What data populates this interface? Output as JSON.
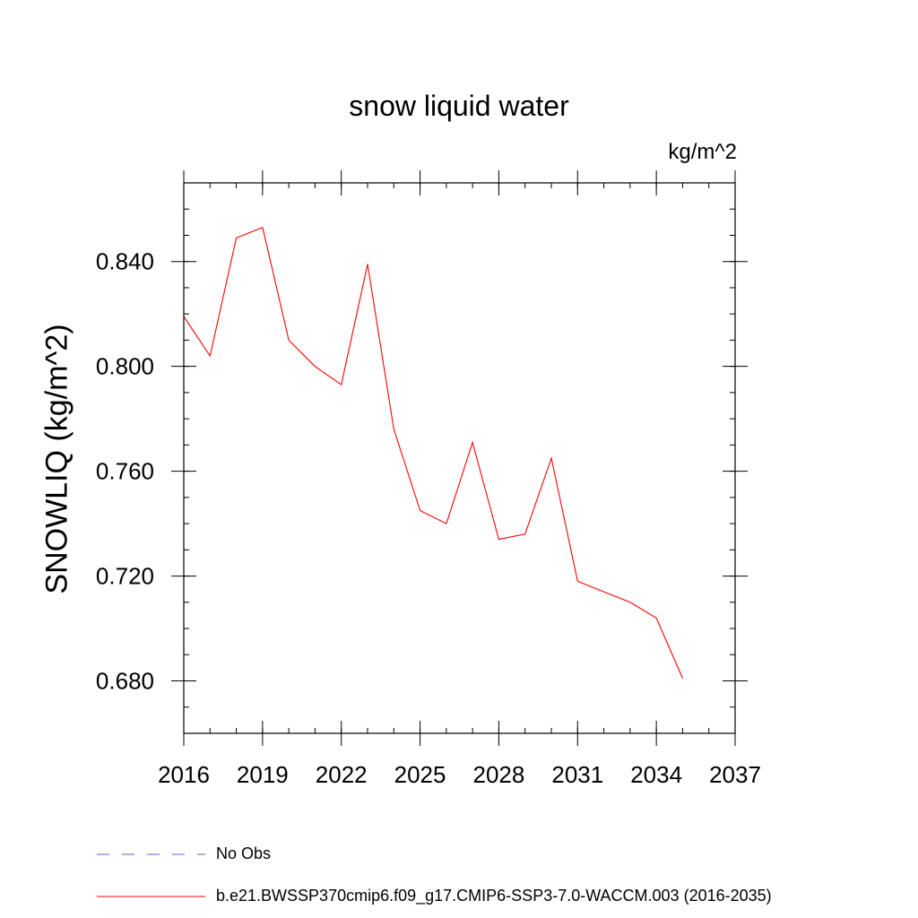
{
  "chart_data": {
    "type": "line",
    "title": "snow liquid water",
    "units_label": "kg/m^2",
    "xlabel": "",
    "ylabel": "SNOWLIQ  (kg/m^2)",
    "xlim": [
      2016,
      2037
    ],
    "ylim": [
      0.66,
      0.87
    ],
    "x_ticks": [
      "2016",
      "2019",
      "2022",
      "2025",
      "2028",
      "2031",
      "2034",
      "2037"
    ],
    "y_ticks": [
      "0.680",
      "0.720",
      "0.760",
      "0.800",
      "0.840"
    ],
    "x_minor_step": 1,
    "y_minor_step": 0.01,
    "grid": false,
    "legend_position": "bottom",
    "series": [
      {
        "name": "b.e21.BWSSP370cmip6.f09_g17.CMIP6-SSP3-7.0-WACCM.003 (2016-2035)",
        "color": "#ff0000",
        "style": "solid",
        "x": [
          2016,
          2017,
          2018,
          2019,
          2020,
          2021,
          2022,
          2023,
          2024,
          2025,
          2026,
          2027,
          2028,
          2029,
          2030,
          2031,
          2032,
          2033,
          2034,
          2035
        ],
        "values": [
          0.819,
          0.804,
          0.849,
          0.853,
          0.81,
          0.8,
          0.793,
          0.839,
          0.776,
          0.745,
          0.74,
          0.771,
          0.734,
          0.736,
          0.765,
          0.718,
          0.714,
          0.71,
          0.704,
          0.681
        ]
      }
    ],
    "legend": [
      {
        "label": "No Obs",
        "color": "#6a5acd",
        "style": "dashed"
      },
      {
        "label": "b.e21.BWSSP370cmip6.f09_g17.CMIP6-SSP3-7.0-WACCM.003 (2016-2035)",
        "color": "#ff0000",
        "style": "solid"
      }
    ]
  }
}
